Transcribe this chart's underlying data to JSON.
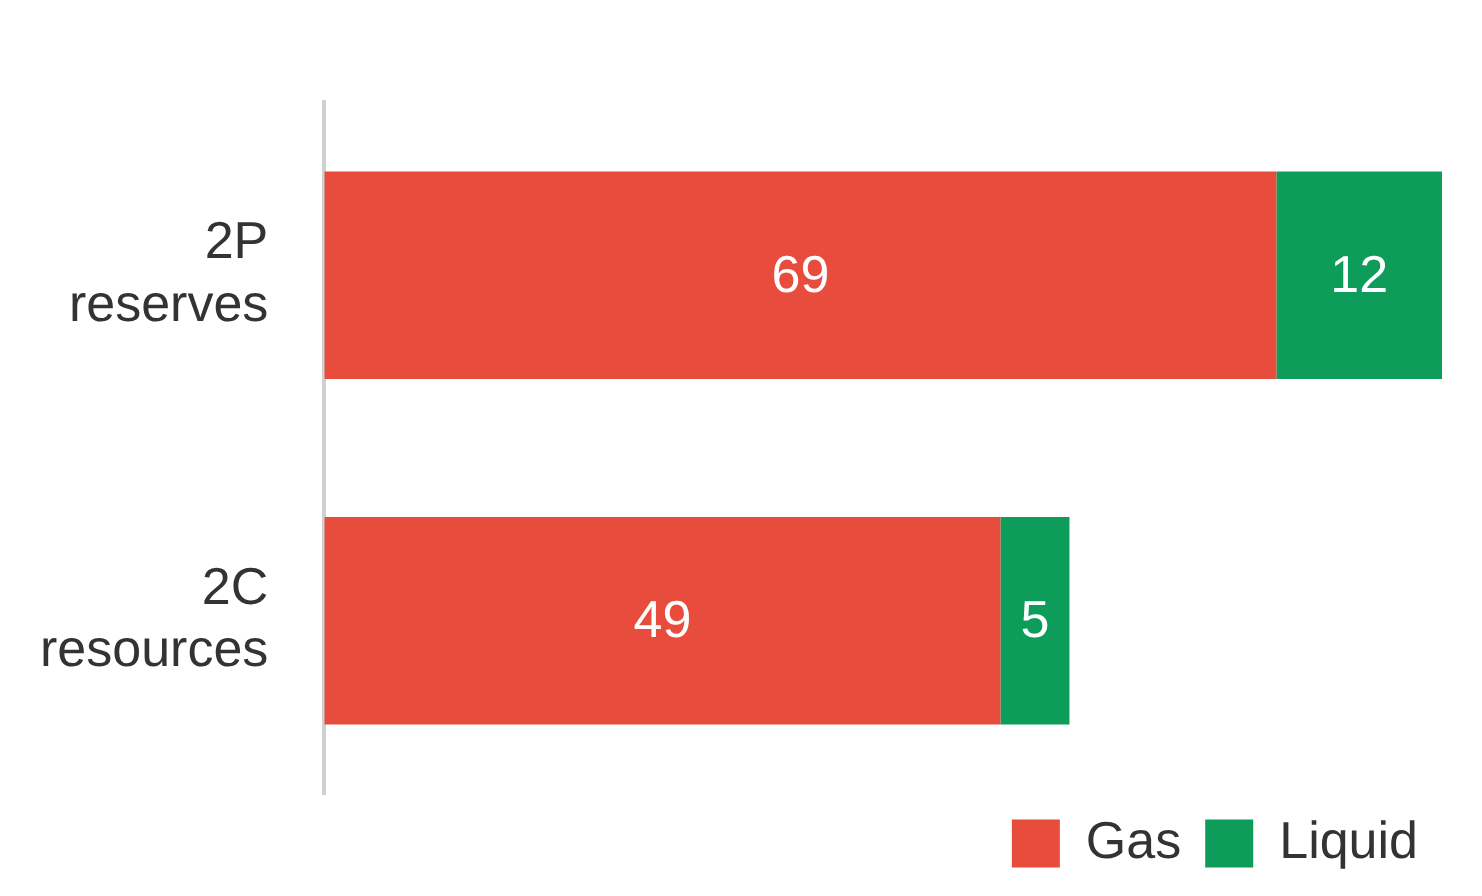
{
  "chart_data": {
    "type": "bar",
    "orientation": "horizontal",
    "stacked": true,
    "categories": [
      "2P reserves",
      "2C resources"
    ],
    "series": [
      {
        "name": "Gas",
        "color": "#e84c3d",
        "values": [
          69,
          49
        ]
      },
      {
        "name": "Liquid",
        "color": "#0e9c5a",
        "values": [
          12,
          5
        ]
      }
    ],
    "data_labels": true,
    "legend": "bottom right"
  }
}
